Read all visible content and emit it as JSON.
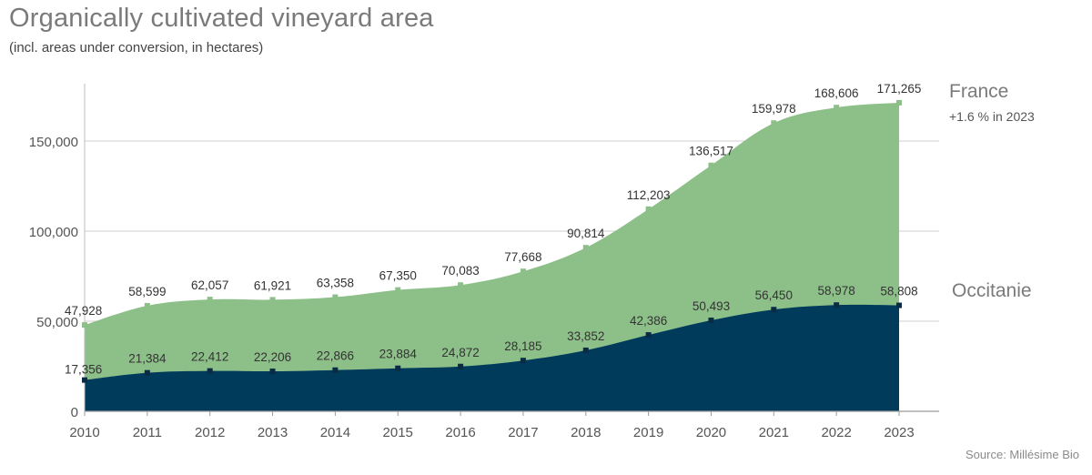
{
  "chart_data": {
    "type": "area",
    "title": "Organically cultivated vineyard area",
    "subtitle": "(incl. areas under conversion, in hectares)",
    "source": "Source: Millésime Bio",
    "x": [
      "2010",
      "2011",
      "2012",
      "2013",
      "2014",
      "2015",
      "2016",
      "2017",
      "2018",
      "2019",
      "2020",
      "2021",
      "2022",
      "2023"
    ],
    "y_ticks": [
      0,
      50000,
      100000,
      150000
    ],
    "y_tick_labels": [
      "0",
      "50,000",
      "100,000",
      "150,000"
    ],
    "ylim": [
      0,
      180000
    ],
    "grid": true,
    "series": [
      {
        "name": "France",
        "note": "+1.6 % in 2023",
        "color": "#8dbf89",
        "marker_color": "#8dbf89",
        "values": [
          47928,
          58599,
          62057,
          61921,
          63358,
          67350,
          70083,
          77668,
          90814,
          112203,
          136517,
          159978,
          168606,
          171265
        ],
        "labels": [
          "47,928",
          "58,599",
          "62,057",
          "61,921",
          "63,358",
          "67,350",
          "70,083",
          "77,668",
          "90,814",
          "112,203",
          "136,517",
          "159,978",
          "168,606",
          "171,265"
        ]
      },
      {
        "name": "Occitanie",
        "color": "#003b5c",
        "marker_color": "#0b2b45",
        "values": [
          17356,
          21384,
          22412,
          22206,
          22866,
          23884,
          24872,
          28185,
          33852,
          42386,
          50493,
          56450,
          58978,
          58808
        ],
        "labels": [
          "17,356",
          "21,384",
          "22,412",
          "22,206",
          "22,866",
          "23,884",
          "24,872",
          "28,185",
          "33,852",
          "42,386",
          "50,493",
          "56,450",
          "58,978",
          "58,808"
        ]
      }
    ]
  }
}
